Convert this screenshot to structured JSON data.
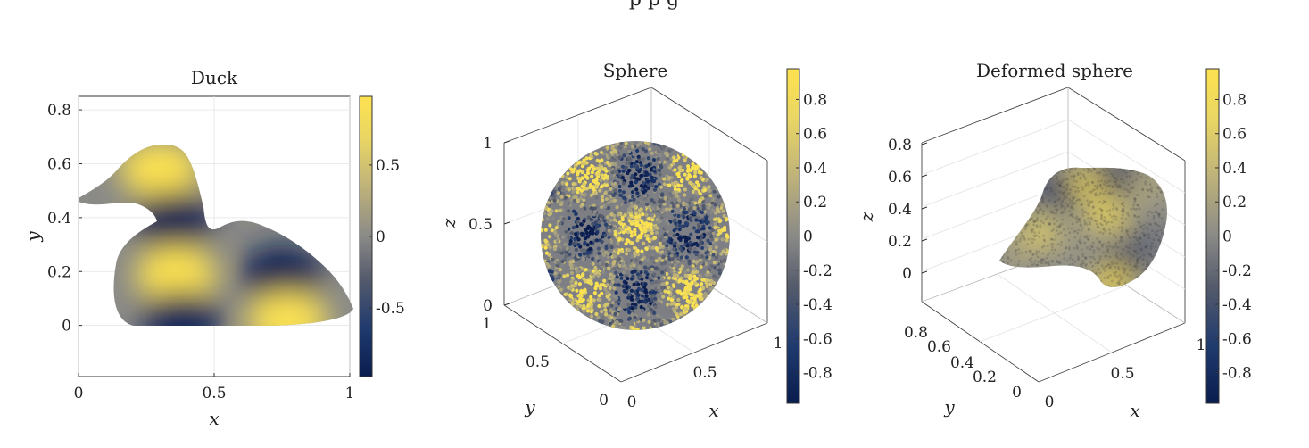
{
  "figure": {
    "top_caption_fragment": "p        p               g"
  },
  "colormap": {
    "name": "cividis-like",
    "stops": [
      "#0a1c4e",
      "#1f3a6e",
      "#555b6c",
      "#8a8a87",
      "#bfb37a",
      "#f2de5a",
      "#fde24f"
    ]
  },
  "chart_data": [
    {
      "type": "heatmap",
      "title": "Duck",
      "xlabel": "x",
      "ylabel": "y",
      "xlim": [
        0,
        1
      ],
      "ylim": [
        -0.19,
        0.85
      ],
      "xticks": [
        0,
        0.5,
        1
      ],
      "xtick_labels": [
        "0",
        "0.5",
        "1"
      ],
      "yticks": [
        0,
        0.2,
        0.4,
        0.6,
        0.8
      ],
      "ytick_labels": [
        "0",
        "0.2",
        "0.4",
        "0.6",
        "0.8"
      ],
      "grid": true,
      "colorbar": {
        "range": [
          -0.98,
          0.98
        ],
        "ticks": [
          -0.5,
          0,
          0.5
        ],
        "tick_labels": [
          "-0.5",
          "0",
          "0.5"
        ]
      },
      "field_extrema": [
        {
          "x": 0.3,
          "y": 0.58,
          "value": 0.95
        },
        {
          "x": 0.35,
          "y": 0.39,
          "value": -0.95
        },
        {
          "x": 0.36,
          "y": 0.19,
          "value": 0.95
        },
        {
          "x": 0.75,
          "y": 0.19,
          "value": -0.95
        },
        {
          "x": 0.38,
          "y": 0.02,
          "value": -0.9
        },
        {
          "x": 0.77,
          "y": 0.02,
          "value": 0.9
        }
      ]
    },
    {
      "type": "scatter",
      "title": "Sphere",
      "xlabel": "x",
      "ylabel": "y",
      "zlabel": "z",
      "xlim": [
        0,
        1
      ],
      "ylim": [
        0,
        1
      ],
      "zlim": [
        0,
        1
      ],
      "xtick_labels": [
        "0",
        "0.5",
        "1"
      ],
      "ytick_labels": [
        "0",
        "0.5",
        "1"
      ],
      "ztick_labels": [
        "0",
        "0.5",
        "1"
      ],
      "grid": true,
      "colorbar": {
        "range": [
          -0.98,
          0.98
        ],
        "ticks": [
          -0.8,
          -0.6,
          -0.4,
          -0.2,
          0,
          0.2,
          0.4,
          0.6,
          0.8
        ],
        "tick_labels": [
          "-0.8",
          "-0.6",
          "-0.4",
          "-0.2",
          "0",
          "0.2",
          "0.4",
          "0.6",
          "0.8"
        ]
      }
    },
    {
      "type": "scatter",
      "title": "Deformed sphere",
      "xlabel": "x",
      "ylabel": "y",
      "zlabel": "z",
      "xlim": [
        0,
        1
      ],
      "ylim": [
        0,
        0.9
      ],
      "zlim": [
        -0.1,
        0.9
      ],
      "xtick_labels": [
        "0",
        "0.5",
        "1"
      ],
      "ytick_labels": [
        "0",
        "0.2",
        "0.4",
        "0.6",
        "0.8"
      ],
      "ztick_labels": [
        "0",
        "0.2",
        "0.4",
        "0.6",
        "0.8"
      ],
      "grid": true,
      "colorbar": {
        "range": [
          -0.98,
          0.98
        ],
        "ticks": [
          -0.8,
          -0.6,
          -0.4,
          -0.2,
          0,
          0.2,
          0.4,
          0.6,
          0.8
        ],
        "tick_labels": [
          "-0.8",
          "-0.6",
          "-0.4",
          "-0.2",
          "0",
          "0.2",
          "0.4",
          "0.6",
          "0.8"
        ]
      }
    }
  ]
}
